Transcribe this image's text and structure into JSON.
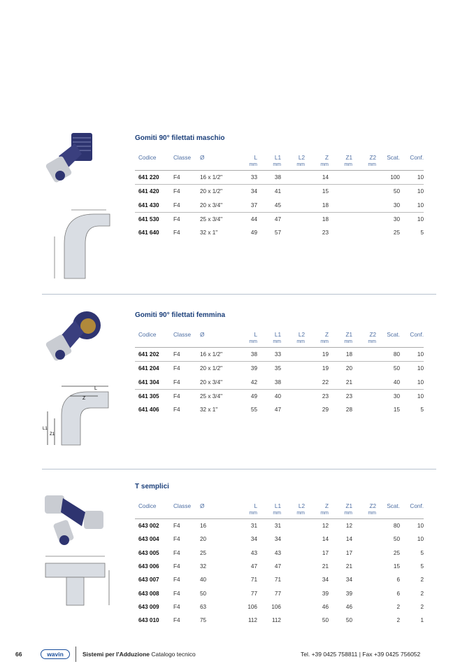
{
  "columns": [
    {
      "label": "Codice",
      "unit": ""
    },
    {
      "label": "Classe",
      "unit": ""
    },
    {
      "label": "Ø",
      "unit": ""
    },
    {
      "label": "L",
      "unit": "mm"
    },
    {
      "label": "L1",
      "unit": "mm"
    },
    {
      "label": "L2",
      "unit": "mm"
    },
    {
      "label": "Z",
      "unit": "mm"
    },
    {
      "label": "Z1",
      "unit": "mm"
    },
    {
      "label": "Z2",
      "unit": "mm"
    },
    {
      "label": "Scat.",
      "unit": ""
    },
    {
      "label": "Conf.",
      "unit": ""
    }
  ],
  "sections": [
    {
      "title": "Gomiti 90° filettati maschio",
      "rows": [
        [
          "641 220",
          "F4",
          "16 x 1/2\"",
          "33",
          "38",
          "",
          "14",
          "",
          "",
          "100",
          "10"
        ],
        [
          "641 420",
          "F4",
          "20 x 1/2\"",
          "34",
          "41",
          "",
          "15",
          "",
          "",
          "50",
          "10"
        ],
        [
          "641 430",
          "F4",
          "20 x 3/4\"",
          "37",
          "45",
          "",
          "18",
          "",
          "",
          "30",
          "10"
        ],
        [
          "641 530",
          "F4",
          "25 x 3/4\"",
          "44",
          "47",
          "",
          "18",
          "",
          "",
          "30",
          "10"
        ],
        [
          "641 640",
          "F4",
          "32 x 1\"",
          "49",
          "57",
          "",
          "23",
          "",
          "",
          "25",
          "5"
        ]
      ]
    },
    {
      "title": "Gomiti 90° filettati femmina",
      "rows": [
        [
          "641 202",
          "F4",
          "16 x 1/2\"",
          "38",
          "33",
          "",
          "19",
          "18",
          "",
          "80",
          "10"
        ],
        [
          "641 204",
          "F4",
          "20 x 1/2\"",
          "39",
          "35",
          "",
          "19",
          "20",
          "",
          "50",
          "10"
        ],
        [
          "641 304",
          "F4",
          "20 x 3/4\"",
          "42",
          "38",
          "",
          "22",
          "21",
          "",
          "40",
          "10"
        ],
        [
          "641 305",
          "F4",
          "25 x 3/4\"",
          "49",
          "40",
          "",
          "23",
          "23",
          "",
          "30",
          "10"
        ],
        [
          "641 406",
          "F4",
          "32 x 1\"",
          "55",
          "47",
          "",
          "29",
          "28",
          "",
          "15",
          "5"
        ]
      ]
    },
    {
      "title": "T semplici",
      "rows": [
        [
          "643 002",
          "F4",
          "16",
          "31",
          "31",
          "",
          "12",
          "12",
          "",
          "80",
          "10"
        ],
        [
          "643 004",
          "F4",
          "20",
          "34",
          "34",
          "",
          "14",
          "14",
          "",
          "50",
          "10"
        ],
        [
          "643 005",
          "F4",
          "25",
          "43",
          "43",
          "",
          "17",
          "17",
          "",
          "25",
          "5"
        ],
        [
          "643 006",
          "F4",
          "32",
          "47",
          "47",
          "",
          "21",
          "21",
          "",
          "15",
          "5"
        ],
        [
          "643 007",
          "F4",
          "40",
          "71",
          "71",
          "",
          "34",
          "34",
          "",
          "6",
          "2"
        ],
        [
          "643 008",
          "F4",
          "50",
          "77",
          "77",
          "",
          "39",
          "39",
          "",
          "6",
          "2"
        ],
        [
          "643 009",
          "F4",
          "63",
          "106",
          "106",
          "",
          "46",
          "46",
          "",
          "2",
          "2"
        ],
        [
          "643 010",
          "F4",
          "75",
          "112",
          "112",
          "",
          "50",
          "50",
          "",
          "2",
          "1"
        ]
      ]
    }
  ],
  "drawing_labels": {
    "L": "L",
    "Z": "Z",
    "L1": "L1",
    "Z1": "Z1"
  },
  "footer": {
    "page": "66",
    "logo": "wavin",
    "brand_bold": "Sistemi per l'Adduzione",
    "brand_rest": " Catalogo tecnico",
    "contact": "Tel. +39 0425 758811  |  Fax +39 0425 756052"
  },
  "colors": {
    "title": "#1b3f7a",
    "header": "#4d6ea3",
    "divider": "#b8c2cf",
    "fitting_body": "#2e3470"
  }
}
